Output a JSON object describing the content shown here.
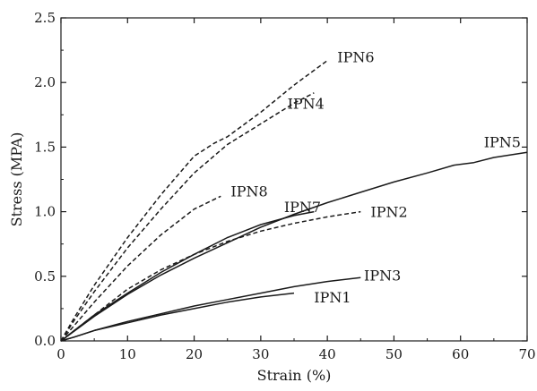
{
  "chart_data": {
    "type": "line",
    "title": "",
    "xlabel": "Strain (%)",
    "ylabel": "Stress (MPA)",
    "xlim": [
      0,
      70
    ],
    "ylim": [
      0,
      2.5
    ],
    "xticks": [
      0,
      10,
      20,
      30,
      40,
      50,
      60,
      70
    ],
    "xtick_labels": [
      "0",
      "10",
      "20",
      "30",
      "40",
      "50",
      "60",
      "70"
    ],
    "yticks": [
      0,
      0.5,
      1.0,
      1.5,
      2.0,
      2.5
    ],
    "ytick_labels": [
      "0.0",
      "0.5",
      "1.0",
      "1.5",
      "2.0",
      "2.5"
    ],
    "grid": false,
    "legend": "none",
    "series": [
      {
        "name": "IPN1",
        "style": "solid",
        "color": "#1a1a1a",
        "x": [
          0,
          2,
          5,
          10,
          15,
          20,
          25,
          30,
          35
        ],
        "y": [
          0,
          0.03,
          0.08,
          0.14,
          0.2,
          0.25,
          0.3,
          0.34,
          0.37
        ]
      },
      {
        "name": "IPN2",
        "style": "dashed",
        "color": "#1a1a1a",
        "x": [
          0,
          2,
          5,
          10,
          15,
          20,
          25,
          30,
          35,
          40,
          45
        ],
        "y": [
          0,
          0.08,
          0.2,
          0.4,
          0.55,
          0.67,
          0.77,
          0.85,
          0.91,
          0.96,
          1.0
        ]
      },
      {
        "name": "IPN3",
        "style": "solid",
        "color": "#1a1a1a",
        "x": [
          0,
          2,
          5,
          10,
          15,
          20,
          25,
          30,
          35,
          40,
          45
        ],
        "y": [
          0,
          0.03,
          0.08,
          0.15,
          0.21,
          0.27,
          0.32,
          0.37,
          0.42,
          0.46,
          0.49
        ]
      },
      {
        "name": "IPN4",
        "style": "dashed",
        "color": "#1a1a1a",
        "x": [
          0,
          2,
          5,
          10,
          15,
          20,
          25,
          30,
          35,
          38
        ],
        "y": [
          0,
          0.16,
          0.38,
          0.72,
          1.02,
          1.3,
          1.52,
          1.68,
          1.84,
          1.92
        ]
      },
      {
        "name": "IPN5",
        "style": "solid",
        "color": "#1a1a1a",
        "x": [
          0,
          5,
          10,
          15,
          20,
          25,
          30,
          35,
          40,
          45,
          50,
          55,
          59,
          62,
          65,
          70
        ],
        "y": [
          0,
          0.19,
          0.36,
          0.51,
          0.64,
          0.76,
          0.88,
          0.98,
          1.07,
          1.15,
          1.23,
          1.3,
          1.36,
          1.38,
          1.42,
          1.46
        ]
      },
      {
        "name": "IPN6",
        "style": "dashed",
        "color": "#1a1a1a",
        "x": [
          0,
          2,
          5,
          10,
          15,
          20,
          23,
          25,
          30,
          35,
          40
        ],
        "y": [
          0,
          0.18,
          0.43,
          0.8,
          1.13,
          1.43,
          1.53,
          1.58,
          1.77,
          1.98,
          2.17
        ]
      },
      {
        "name": "IPN7",
        "style": "solid",
        "color": "#1a1a1a",
        "x": [
          0,
          5,
          10,
          15,
          20,
          25,
          30,
          35,
          38
        ],
        "y": [
          0,
          0.2,
          0.37,
          0.53,
          0.67,
          0.8,
          0.9,
          0.97,
          1.0
        ]
      },
      {
        "name": "IPN8",
        "style": "dashed",
        "color": "#1a1a1a",
        "x": [
          0,
          2,
          5,
          10,
          15,
          20,
          24
        ],
        "y": [
          0,
          0.12,
          0.3,
          0.58,
          0.82,
          1.02,
          1.12
        ]
      }
    ],
    "annotations": [
      {
        "text": "IPN6",
        "x": 41.5,
        "y": 2.2
      },
      {
        "text": "IPN4",
        "x": 34.0,
        "y": 1.84
      },
      {
        "text": "IPN5",
        "x": 63.5,
        "y": 1.54
      },
      {
        "text": "IPN8",
        "x": 25.5,
        "y": 1.16
      },
      {
        "text": "IPN7",
        "x": 33.5,
        "y": 1.04
      },
      {
        "text": "IPN2",
        "x": 46.5,
        "y": 1.0
      },
      {
        "text": "IPN3",
        "x": 45.5,
        "y": 0.51
      },
      {
        "text": "IPN1",
        "x": 38.0,
        "y": 0.34
      }
    ]
  }
}
